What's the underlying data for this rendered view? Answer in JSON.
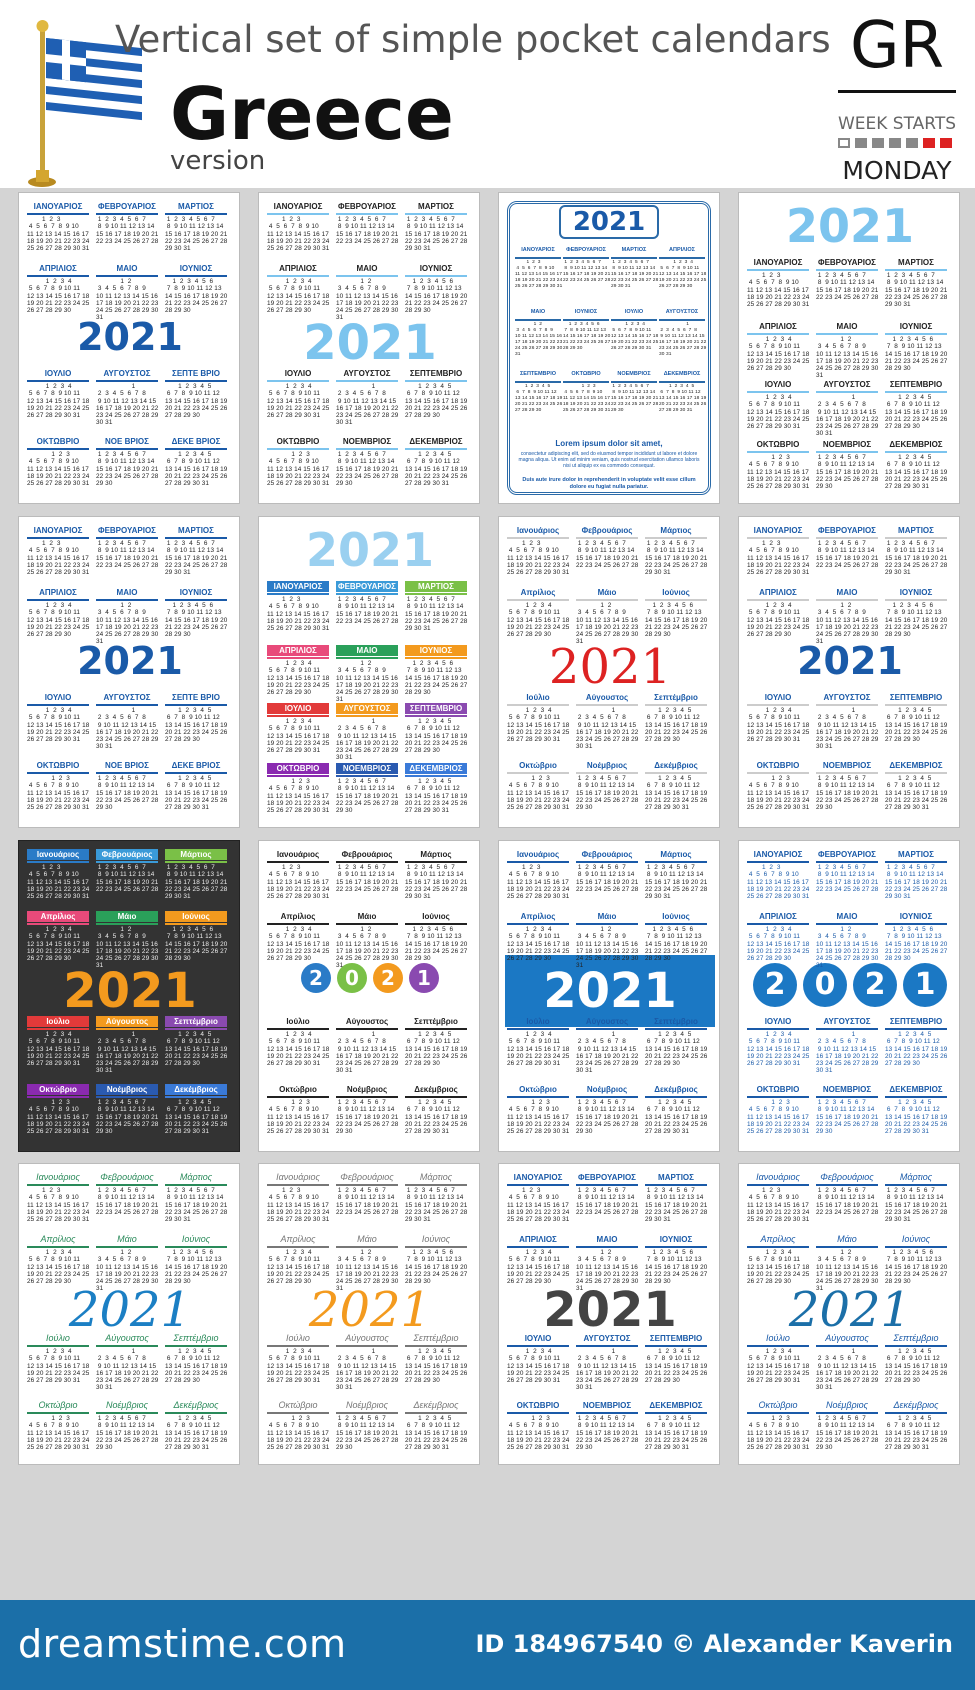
{
  "header": {
    "subtitle": "Vertical  set of simple pocket calendars",
    "country": "Greece",
    "version": "version",
    "code": "GR",
    "week_starts": "WEEK STARTS",
    "day": "MONDAY"
  },
  "year": "2021",
  "months_upper": [
    "ΙΑΝΟΥΑΡΙΟΣ",
    "ΦΕΒΡΟΥΑΡΙΟΣ",
    "ΜΑΡΤΙΟΣ",
    "ΑΠΡΙΛΙΟΣ",
    "ΜΑΙΟ",
    "ΙΟΥΝΙΟΣ",
    "ΙΟΥΛΙΟ",
    "ΑΥΓΟΥΣΤΟΣ",
    "ΣΕΠΤΕ ΒΡΙΟ",
    "ΟΚΤΩΒΡΙΟ",
    "ΝΟΕ ΒΡΙΟΣ",
    "ΔΕΚΕ ΒΡΙΟΣ"
  ],
  "months_upper_b": [
    "ΙΑΝΟΥΑΡΙΟΣ",
    "ΦΕΒΡΟΥΑΡΙΟΣ",
    "ΜΑΡΤΙΟΣ",
    "ΑΠΡΙΛΙΟΣ",
    "ΜΑΙΟ",
    "ΙΟΥΝΙΟΣ",
    "ΙΟΥΛΙΟ",
    "ΑΥΓΟΥΣΤΟΣ",
    "ΣΕΠΤΕΜΒΡΙΟ",
    "ΟΚΤΩΒΡΙΟ",
    "ΝΟΕΜΒΡΙΟΣ",
    "ΔΕΚΕΜΒΡΙΟΣ"
  ],
  "months_title": [
    "Ιανουάριος",
    "Φεβρουάριος",
    "Μάρτιος",
    "Απρίλιος",
    "Μάιο",
    "Ιούνιος",
    "Ιούλιο",
    "Αύγουστος",
    "Σεπτέμβριο",
    "Οκτώβριο",
    "Νοέμβριος",
    "Δεκέμβριος"
  ],
  "month_days": [
    "        1  2  3\n 4  5  6  7  8  9 10\n11 12 13 14 15 16 17\n18 19 20 21 22 23 24\n25 26 27 28 29 30 31",
    " 1  2  3  4  5  6  7\n 8  9 10 11 12 13 14\n15 16 17 18 19 20 21\n22 23 24 25 26 27 28",
    " 1  2  3  4  5  6  7\n 8  9 10 11 12 13 14\n15 16 17 18 19 20 21\n22 23 24 25 26 27 28\n29 30 31",
    "          1  2  3  4\n 5  6  7  8  9 10 11\n12 13 14 15 16 17 18\n19 20 21 22 23 24 25\n26 27 28 29 30",
    "             1  2\n 3  4  5  6  7  8  9\n10 11 12 13 14 15 16\n17 18 19 20 21 22 23\n24 25 26 27 28 29 30\n31",
    "    1  2  3  4  5  6\n 7  8  9 10 11 12 13\n14 15 16 17 18 19 20\n21 22 23 24 25 26 27\n28 29 30",
    "          1  2  3  4\n 5  6  7  8  9 10 11\n12 13 14 15 16 17 18\n19 20 21 22 23 24 25\n26 27 28 29 30 31",
    "                   1\n 2  3  4  5  6  7  8\n 9 10 11 12 13 14 15\n16 17 18 19 20 21 22\n23 24 25 26 27 28 29\n30 31",
    "       1  2  3  4  5\n 6  7  8  9 10 11 12\n13 14 15 16 17 18 19\n20 21 22 23 24 25 26\n27 28 29 30",
    "             1  2  3\n 4  5  6  7  8  9 10\n11 12 13 14 15 16 17\n18 19 20 21 22 23 24\n25 26 27 28 29 30 31",
    " 1  2  3  4  5  6  7\n 8  9 10 11 12 13 14\n15 16 17 18 19 20 21\n22 23 24 25 26 27 28\n29 30",
    "       1  2  3  4  5\n 6  7  8  9 10 11 12\n13 14 15 16 17 18 19\n20 21 22 23 24 25 26\n27 28 29 30 31"
  ],
  "card3": {
    "title": "2021",
    "lorem1": "Lorem ipsum dolor sit amet,",
    "lorem2": "consectetur adipiscing elit, sed do eiusmod tempor incididunt ut labore et dolore magna aliqua. Ut enim ad minim veniam, quis nostrud exercitation ullamco laboris nisi ut aliquip ex ea commodo consequat.",
    "lorem3": "Duis aute irure dolor in reprehenderit in voluptate velit esse cillum dolore eu fugiat nulla pariatur."
  },
  "footer": {
    "brand": "dreamstime.com",
    "credit": "ID 184967540 © Alexander Kaverin"
  },
  "colors": {
    "blue": "#1a5aa8",
    "light_blue": "#7cc4ee",
    "red": "#d22222",
    "orange": "#f39a1e",
    "footer": "#1b6fa8"
  }
}
